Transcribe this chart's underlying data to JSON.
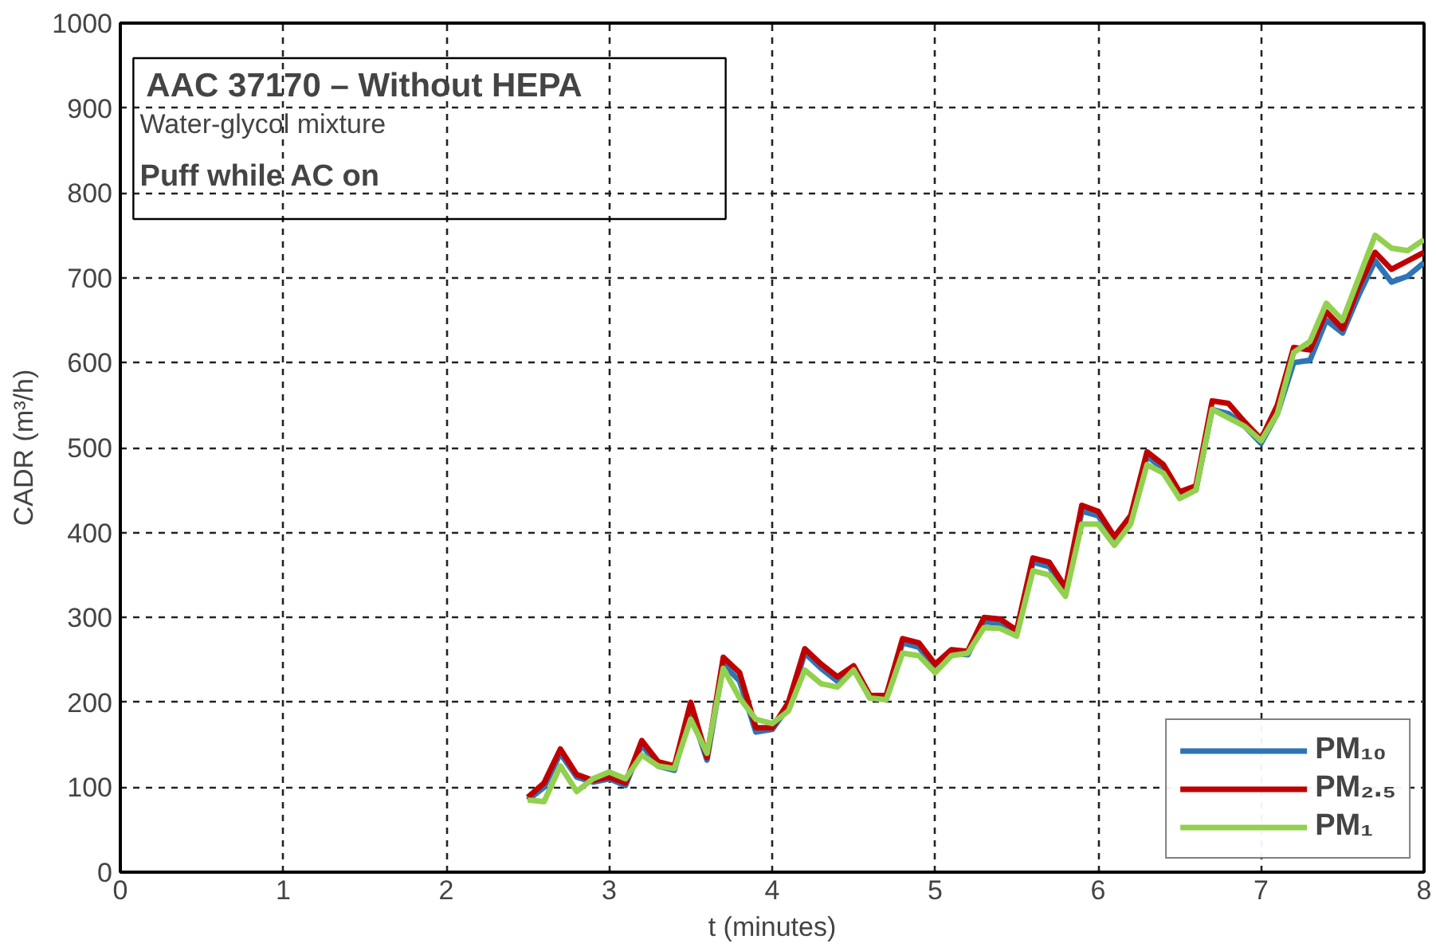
{
  "chart_data": {
    "type": "line",
    "title": "AAC 37170 – Without HEPA",
    "subtitle": "Water-glycol mixture",
    "annotations": [
      "Puff while AC on"
    ],
    "xlabel": "t (minutes)",
    "ylabel": "CADR (m³/h)",
    "x": [
      2.5,
      2.6,
      2.7,
      2.8,
      2.9,
      3.0,
      3.1,
      3.2,
      3.3,
      3.4,
      3.5,
      3.6,
      3.7,
      3.8,
      3.9,
      4.0,
      4.1,
      4.2,
      4.3,
      4.4,
      4.5,
      4.6,
      4.7,
      4.8,
      4.9,
      5.0,
      5.1,
      5.2,
      5.3,
      5.4,
      5.5,
      5.6,
      5.7,
      5.8,
      5.9,
      6.0,
      6.1,
      6.2,
      6.3,
      6.4,
      6.5,
      6.6,
      6.7,
      6.8,
      6.9,
      7.0,
      7.1,
      7.2,
      7.3,
      7.4,
      7.5,
      7.6,
      7.7,
      7.8,
      7.9,
      8.0
    ],
    "series": [
      {
        "name": "PM₁₀",
        "color": "#2e75b6",
        "values": [
          85,
          100,
          140,
          112,
          106,
          110,
          102,
          150,
          125,
          120,
          190,
          132,
          245,
          225,
          165,
          168,
          195,
          258,
          240,
          225,
          240,
          205,
          205,
          270,
          265,
          240,
          258,
          256,
          295,
          293,
          280,
          365,
          360,
          330,
          425,
          420,
          390,
          415,
          490,
          475,
          445,
          450,
          545,
          540,
          525,
          505,
          540,
          600,
          603,
          650,
          635,
          680,
          720,
          695,
          702,
          718
        ]
      },
      {
        "name": "PM₂.₅",
        "color": "#c00000",
        "values": [
          88,
          105,
          145,
          115,
          108,
          112,
          105,
          155,
          130,
          125,
          200,
          135,
          253,
          235,
          170,
          170,
          200,
          263,
          245,
          230,
          243,
          208,
          208,
          275,
          270,
          245,
          262,
          260,
          300,
          298,
          285,
          370,
          365,
          335,
          432,
          425,
          395,
          420,
          495,
          480,
          448,
          455,
          555,
          552,
          530,
          510,
          550,
          618,
          615,
          660,
          640,
          690,
          730,
          710,
          720,
          730
        ]
      },
      {
        "name": "PM₁",
        "color": "#92d050",
        "values": [
          85,
          83,
          125,
          95,
          110,
          118,
          110,
          138,
          125,
          122,
          180,
          140,
          240,
          205,
          180,
          175,
          190,
          238,
          222,
          218,
          238,
          205,
          203,
          258,
          255,
          235,
          255,
          258,
          288,
          287,
          278,
          355,
          350,
          325,
          410,
          410,
          385,
          410,
          480,
          470,
          440,
          450,
          545,
          535,
          525,
          508,
          540,
          612,
          625,
          670,
          650,
          700,
          750,
          735,
          732,
          745
        ]
      }
    ],
    "xlim": [
      0,
      8
    ],
    "xticks": [
      0,
      1,
      2,
      3,
      4,
      5,
      6,
      7,
      8
    ],
    "ylim": [
      0,
      1000
    ],
    "yticks": [
      0,
      100,
      200,
      300,
      400,
      500,
      600,
      700,
      800,
      900,
      1000
    ],
    "grid": true,
    "legend": "bottom right",
    "line_style": "solid",
    "marker": "none"
  }
}
